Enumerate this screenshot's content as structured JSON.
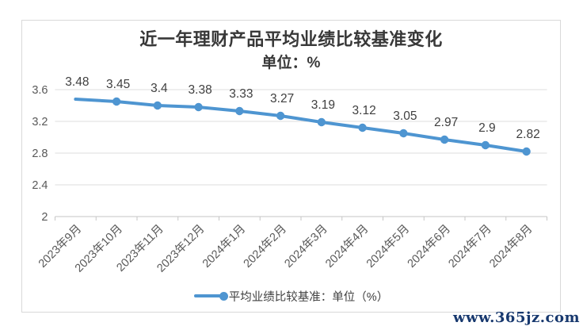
{
  "chart": {
    "title": "近一年理财产品平均业绩比较基准变化",
    "subtitle": "单位：%",
    "legend_label": "平均业绩比较基准：单位（%）"
  },
  "watermark": {
    "text": "www.365jz.com"
  },
  "colors": {
    "line": "#4e95d1",
    "grid": "#dcdcdc",
    "axis": "#c6c6c6",
    "tick_label": "#595959",
    "data_label": "#3f3f3f",
    "watermark": "#17386e"
  },
  "chart_data": {
    "type": "line",
    "title": "近一年理财产品平均业绩比较基准变化",
    "subtitle": "单位：%",
    "categories": [
      "2023年9月",
      "2023年10月",
      "2023年11月",
      "2023年12月",
      "2024年1月",
      "2024年2月",
      "2024年3月",
      "2024年4月",
      "2024年5月",
      "2024年6月",
      "2024年7月",
      "2024年8月"
    ],
    "series": [
      {
        "name": "平均业绩比较基准：单位（%）",
        "values": [
          3.48,
          3.45,
          3.4,
          3.38,
          3.33,
          3.27,
          3.19,
          3.12,
          3.05,
          2.97,
          2.9,
          2.82
        ]
      }
    ],
    "ylim": [
      2,
      3.6
    ],
    "yticks": [
      2,
      2.4,
      2.8,
      3.2,
      3.6
    ],
    "grid": true,
    "data_labels": true,
    "legend_position": "bottom",
    "first_point_marker": false
  }
}
